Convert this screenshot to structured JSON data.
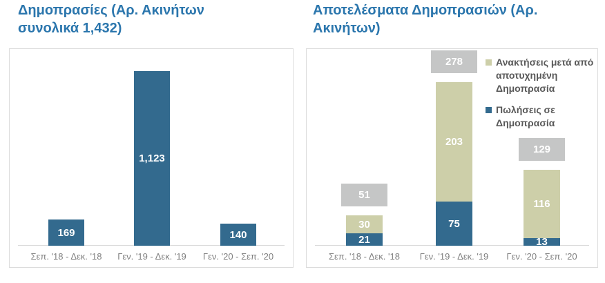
{
  "colors": {
    "title_blue": "#2b76ad",
    "bar_blue": "#336a8e",
    "recovery_beige": "#cdcfa9",
    "total_badge_gray": "#c5c6c6",
    "axis_line_gray": "#d9d9d9",
    "tick_label_gray": "#7f7f7f",
    "legend_text_gray": "#595959",
    "value_label_white": "#ffffff",
    "panel_border_gray": "#dcdcdc"
  },
  "chart_data": [
    {
      "type": "bar",
      "title": "Δημοπρασίες (Αρ. Ακινήτων συνολικά 1,432)",
      "categories": [
        "Σεπ. '18 - Δεκ. '18",
        "Γεν. '19 - Δεκ. '19",
        "Γεν. '20 - Σεπ. '20"
      ],
      "values": [
        169,
        1123,
        140
      ],
      "value_labels": [
        "169",
        "1,123",
        "140"
      ],
      "value_label_position": "inside-center",
      "bar_color_key": "bar_blue",
      "ylim": [
        0,
        1200
      ],
      "grid": false,
      "legend_position": "none"
    },
    {
      "type": "bar",
      "stacked": true,
      "title": "Αποτελέσματα Δημοπρασιών (Αρ. Ακινήτων)",
      "categories": [
        "Σεπ. '18 - Δεκ. '18",
        "Γεν. '19 - Δεκ. '19",
        "Γεν. '20 - Σεπ. '20"
      ],
      "series": [
        {
          "name": "Πωλήσεις σε Δημοπρασία",
          "values": [
            21,
            75,
            13
          ],
          "color_key": "bar_blue"
        },
        {
          "name": "Ανακτήσεις μετά από αποτυχημένη Δημοπρασία",
          "values": [
            30,
            203,
            116
          ],
          "color_key": "recovery_beige"
        }
      ],
      "totals": [
        51,
        278,
        129
      ],
      "totals_style": "gray-badge-above-bar",
      "legend_order": [
        1,
        0
      ],
      "legend_position": "right",
      "ylim": [
        0,
        340
      ],
      "grid": false
    }
  ]
}
